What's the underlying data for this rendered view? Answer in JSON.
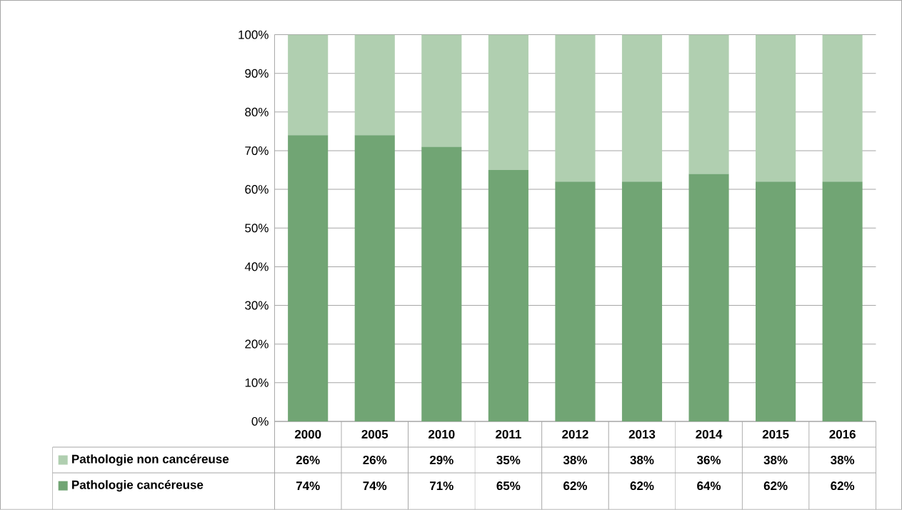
{
  "chart_data": {
    "type": "bar",
    "stacked": true,
    "categories": [
      "2000",
      "2005",
      "2010",
      "2011",
      "2012",
      "2013",
      "2014",
      "2015",
      "2016"
    ],
    "series": [
      {
        "name": "Pathologie cancéreuse",
        "color": "#71a574",
        "values": [
          74,
          74,
          71,
          65,
          62,
          62,
          64,
          62,
          62
        ],
        "value_labels": [
          "74%",
          "74%",
          "71%",
          "65%",
          "62%",
          "62%",
          "64%",
          "62%",
          "62%"
        ]
      },
      {
        "name": "Pathologie non cancéreuse",
        "color": "#b0cfb0",
        "values": [
          26,
          26,
          29,
          35,
          38,
          38,
          36,
          38,
          38
        ],
        "value_labels": [
          "26%",
          "26%",
          "29%",
          "35%",
          "38%",
          "38%",
          "36%",
          "38%",
          "38%"
        ]
      }
    ],
    "ylim": [
      0,
      100
    ],
    "yticks": [
      {
        "value": 0,
        "label": "0%"
      },
      {
        "value": 10,
        "label": "10%"
      },
      {
        "value": 20,
        "label": "20%"
      },
      {
        "value": 30,
        "label": "30%"
      },
      {
        "value": 40,
        "label": "40%"
      },
      {
        "value": 50,
        "label": "50%"
      },
      {
        "value": 60,
        "label": "60%"
      },
      {
        "value": 70,
        "label": "70%"
      },
      {
        "value": 80,
        "label": "80%"
      },
      {
        "value": 90,
        "label": "90%"
      },
      {
        "value": 100,
        "label": "100%"
      }
    ],
    "grid": "y",
    "legend": "bottom"
  }
}
